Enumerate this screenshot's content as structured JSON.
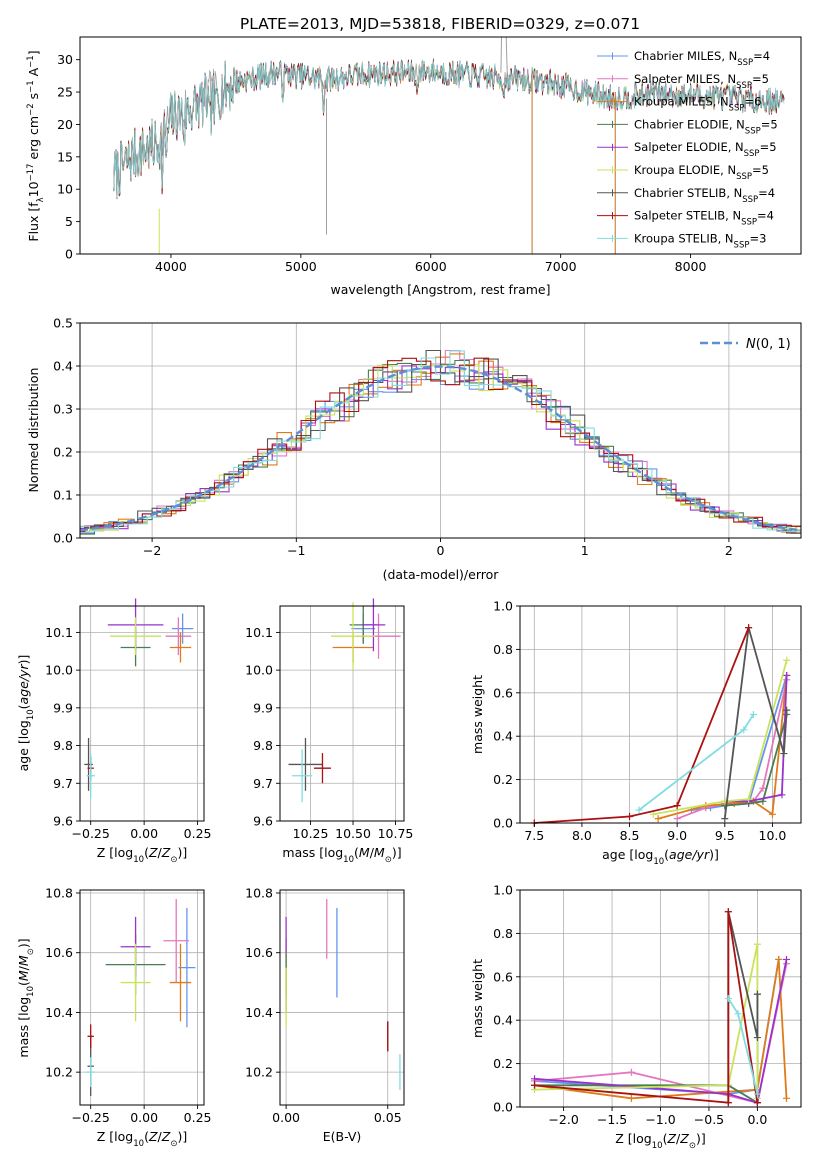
{
  "figure_title": "PLATE=2013, MJD=53818, FIBERID=0329, z=0.071",
  "colors": {
    "Chabrier MILES": "#6495ed",
    "Salpeter MILES": "#e377c2",
    "Kroupa MILES": "#e07b1a",
    "Chabrier ELODIE": "#4a7d52",
    "Salpeter ELODIE": "#9932cc",
    "Kroupa ELODIE": "#c9e35a",
    "Chabrier STELIB": "#555555",
    "Salpeter STELIB": "#aa1111",
    "Kroupa STELIB": "#80dde0"
  },
  "chart_data": [
    {
      "id": "spectrum",
      "type": "line",
      "title": "PLATE=2013, MJD=53818, FIBERID=0329, z=0.071",
      "xlabel": "wavelength [Angstrom, rest frame]",
      "ylabel": "Flux [f_λ 10^-17 erg cm^-2 s^-1 A^-1]",
      "xlim": [
        3300,
        8850
      ],
      "ylim": [
        0,
        33.5
      ],
      "xticks": [
        4000,
        5000,
        6000,
        7000,
        8000
      ],
      "yticks": [
        0,
        5,
        10,
        15,
        20,
        25,
        30
      ],
      "legend_position": "upper right",
      "continuum": {
        "x": [
          3560,
          3700,
          3900,
          4000,
          4100,
          4300,
          4500,
          4800,
          5000,
          5200,
          5500,
          5800,
          6000,
          6300,
          6500,
          6700,
          6900,
          7100,
          7400,
          7700,
          8000,
          8400,
          8700
        ],
        "y": [
          12,
          15,
          17,
          21,
          22,
          24,
          26.5,
          28,
          27.5,
          27,
          27.8,
          28,
          28.2,
          27.6,
          27.2,
          27,
          26.5,
          25.5,
          24,
          24.8,
          24.5,
          24,
          23.5
        ]
      },
      "series": [
        {
          "name": "Chabrier MILES, N_SSP=4"
        },
        {
          "name": "Salpeter MILES, N_SSP=5"
        },
        {
          "name": "Kroupa MILES, N_SSP=6"
        },
        {
          "name": "Chabrier ELODIE, N_SSP=5"
        },
        {
          "name": "Salpeter ELODIE, N_SSP=5"
        },
        {
          "name": "Kroupa ELODIE, N_SSP=5"
        },
        {
          "name": "Chabrier STELIB, N_SSP=4"
        },
        {
          "name": "Salpeter STELIB, N_SSP=4"
        },
        {
          "name": "Kroupa STELIB, N_SSP=3"
        }
      ]
    },
    {
      "id": "residuals",
      "type": "area",
      "xlabel": "(data-model)/error",
      "ylabel": "Normed distribution",
      "xlim": [
        -2.5,
        2.5
      ],
      "ylim": [
        0,
        0.5
      ],
      "xticks": [
        -2,
        -1,
        0,
        1,
        2
      ],
      "yticks": [
        0.0,
        0.1,
        0.2,
        0.3,
        0.4,
        0.5
      ],
      "grid": true,
      "legend_label": "N(0,1)",
      "legend_position": "upper right",
      "bin_width": 0.1
    },
    {
      "id": "age-Z",
      "type": "scatter",
      "xlabel": "Z [log10(Z/Z⊙)]",
      "ylabel": "age [log10(age/yr)]",
      "xlim": [
        -0.3,
        0.28
      ],
      "ylim": [
        9.6,
        10.17
      ],
      "xticks": [
        -0.25,
        0.0,
        0.25
      ],
      "yticks": [
        9.6,
        9.7,
        9.8,
        9.9,
        10.0,
        10.1
      ],
      "grid": true,
      "points": [
        {
          "model": "Chabrier MILES",
          "x": 0.18,
          "y": 10.11,
          "xerr": 0.05,
          "yerr": 0.04
        },
        {
          "model": "Salpeter MILES",
          "x": 0.16,
          "y": 10.09,
          "xerr": 0.06,
          "yerr": 0.05
        },
        {
          "model": "Kroupa MILES",
          "x": 0.17,
          "y": 10.06,
          "xerr": 0.05,
          "yerr": 0.04
        },
        {
          "model": "Chabrier ELODIE",
          "x": -0.04,
          "y": 10.06,
          "xerr": 0.07,
          "yerr": 0.05
        },
        {
          "model": "Salpeter ELODIE",
          "x": -0.04,
          "y": 10.12,
          "xerr": 0.13,
          "yerr": 0.07
        },
        {
          "model": "Kroupa ELODIE",
          "x": -0.04,
          "y": 10.09,
          "xerr": 0.12,
          "yerr": 0.05
        },
        {
          "model": "Chabrier STELIB",
          "x": -0.26,
          "y": 9.75,
          "xerr": 0.02,
          "yerr": 0.07
        },
        {
          "model": "Salpeter STELIB",
          "x": -0.25,
          "y": 9.74,
          "xerr": 0.015,
          "yerr": 0.03
        },
        {
          "model": "Kroupa STELIB",
          "x": -0.25,
          "y": 9.72,
          "xerr": 0.02,
          "yerr": 0.06
        }
      ]
    },
    {
      "id": "age-mass",
      "type": "scatter",
      "xlabel": "mass [log10(M/M⊙)]",
      "ylabel": "",
      "xlim": [
        10.07,
        10.8
      ],
      "ylim": [
        9.6,
        10.17
      ],
      "xticks": [
        10.25,
        10.5,
        10.75
      ],
      "yticks": [
        9.6,
        9.7,
        9.8,
        9.9,
        10.0,
        10.1
      ],
      "grid": true,
      "points": [
        {
          "model": "Chabrier MILES",
          "x": 10.56,
          "y": 10.11,
          "xerr": 0.07,
          "yerr": 0.04
        },
        {
          "model": "Salpeter MILES",
          "x": 10.65,
          "y": 10.09,
          "xerr": 0.13,
          "yerr": 0.06
        },
        {
          "model": "Kroupa MILES",
          "x": 10.5,
          "y": 10.06,
          "xerr": 0.12,
          "yerr": 0.04
        },
        {
          "model": "Chabrier ELODIE",
          "x": 10.56,
          "y": 10.12,
          "xerr": 0.08,
          "yerr": 0.05
        },
        {
          "model": "Salpeter ELODIE",
          "x": 10.62,
          "y": 10.12,
          "xerr": 0.07,
          "yerr": 0.07
        },
        {
          "model": "Kroupa ELODIE",
          "x": 10.5,
          "y": 10.09,
          "xerr": 0.13,
          "yerr": 0.09
        },
        {
          "model": "Chabrier STELIB",
          "x": 10.22,
          "y": 9.75,
          "xerr": 0.1,
          "yerr": 0.07
        },
        {
          "model": "Salpeter STELIB",
          "x": 10.32,
          "y": 9.74,
          "xerr": 0.05,
          "yerr": 0.04
        },
        {
          "model": "Kroupa STELIB",
          "x": 10.2,
          "y": 9.72,
          "xerr": 0.06,
          "yerr": 0.07
        }
      ]
    },
    {
      "id": "weight-age",
      "type": "line",
      "xlabel": "age [log10(age/yr)]",
      "ylabel": "mass weight",
      "xlim": [
        7.35,
        10.3
      ],
      "ylim": [
        0,
        1
      ],
      "xticks": [
        7.5,
        8.0,
        8.5,
        9.0,
        9.5,
        10.0
      ],
      "yticks": [
        0.0,
        0.2,
        0.4,
        0.6,
        0.8,
        1.0
      ],
      "grid": true,
      "series": [
        {
          "model": "Chabrier MILES",
          "x": [
            9.15,
            9.35,
            9.5,
            9.75,
            10.15
          ],
          "y": [
            0.06,
            0.07,
            0.08,
            0.09,
            0.68
          ]
        },
        {
          "model": "Salpeter MILES",
          "x": [
            9.0,
            9.3,
            9.5,
            9.8,
            9.9,
            10.15
          ],
          "y": [
            0.02,
            0.07,
            0.09,
            0.1,
            0.16,
            0.66
          ]
        },
        {
          "model": "Kroupa MILES",
          "x": [
            8.8,
            9.3,
            9.6,
            9.8,
            10.0,
            10.15
          ],
          "y": [
            0.02,
            0.08,
            0.09,
            0.1,
            0.04,
            0.68
          ]
        },
        {
          "model": "Chabrier ELODIE",
          "x": [
            9.5,
            9.75,
            9.9,
            10.15
          ],
          "y": [
            0.08,
            0.09,
            0.1,
            0.5
          ]
        },
        {
          "model": "Salpeter ELODIE",
          "x": [
            9.5,
            9.75,
            10.1,
            10.15
          ],
          "y": [
            0.1,
            0.1,
            0.13,
            0.68
          ]
        },
        {
          "model": "Kroupa ELODIE",
          "x": [
            8.75,
            9.5,
            9.75,
            10.15
          ],
          "y": [
            0.04,
            0.1,
            0.11,
            0.75
          ]
        },
        {
          "model": "Chabrier STELIB",
          "x": [
            9.5,
            9.75,
            10.12,
            10.15
          ],
          "y": [
            0.02,
            0.9,
            0.32,
            0.52
          ]
        },
        {
          "model": "Salpeter STELIB",
          "x": [
            7.5,
            8.5,
            9.0,
            9.75
          ],
          "y": [
            0.0,
            0.03,
            0.08,
            0.9
          ]
        },
        {
          "model": "Kroupa STELIB",
          "x": [
            8.6,
            9.7,
            9.8
          ],
          "y": [
            0.06,
            0.43,
            0.5
          ]
        }
      ]
    },
    {
      "id": "mass-Z",
      "type": "scatter",
      "xlabel": "Z [log10(Z/Z⊙)]",
      "ylabel": "mass [log10(M/M⊙)]",
      "xlim": [
        -0.3,
        0.28
      ],
      "ylim": [
        10.09,
        10.81
      ],
      "xticks": [
        -0.25,
        0.0,
        0.25
      ],
      "yticks": [
        10.2,
        10.4,
        10.6,
        10.8
      ],
      "grid": true,
      "points": [
        {
          "model": "Chabrier MILES",
          "x": 0.2,
          "y": 10.55,
          "xerr": 0.04,
          "yerr": 0.2
        },
        {
          "model": "Salpeter MILES",
          "x": 0.15,
          "y": 10.64,
          "xerr": 0.06,
          "yerr": 0.14
        },
        {
          "model": "Kroupa MILES",
          "x": 0.17,
          "y": 10.5,
          "xerr": 0.05,
          "yerr": 0.13
        },
        {
          "model": "Chabrier ELODIE",
          "x": -0.04,
          "y": 10.56,
          "xerr": 0.14,
          "yerr": 0.1
        },
        {
          "model": "Salpeter ELODIE",
          "x": -0.04,
          "y": 10.62,
          "xerr": 0.07,
          "yerr": 0.1
        },
        {
          "model": "Kroupa ELODIE",
          "x": -0.04,
          "y": 10.5,
          "xerr": 0.07,
          "yerr": 0.13
        },
        {
          "model": "Chabrier STELIB",
          "x": -0.25,
          "y": 10.22,
          "xerr": 0.015,
          "yerr": 0.1
        },
        {
          "model": "Salpeter STELIB",
          "x": -0.25,
          "y": 10.32,
          "xerr": 0.015,
          "yerr": 0.04
        },
        {
          "model": "Kroupa STELIB",
          "x": -0.25,
          "y": 10.2,
          "xerr": 0.02,
          "yerr": 0.05
        }
      ]
    },
    {
      "id": "mass-ebv",
      "type": "scatter",
      "xlabel": "E(B-V)",
      "ylabel": "",
      "xlim": [
        -0.003,
        0.058
      ],
      "ylim": [
        10.09,
        10.81
      ],
      "xticks": [
        0.0,
        0.05
      ],
      "yticks": [
        10.2,
        10.4,
        10.6,
        10.8
      ],
      "grid": true,
      "points": [
        {
          "model": "Chabrier MILES",
          "x": 0.025,
          "y": 10.6,
          "yerr": 0.15
        },
        {
          "model": "Salpeter MILES",
          "x": 0.02,
          "y": 10.68,
          "yerr": 0.1
        },
        {
          "model": "Kroupa MILES",
          "x": 0.0,
          "y": 10.55,
          "yerr": 0.1
        },
        {
          "model": "Chabrier ELODIE",
          "x": 0.0,
          "y": 10.5,
          "yerr": 0.1
        },
        {
          "model": "Salpeter ELODIE",
          "x": 0.0,
          "y": 10.66,
          "yerr": 0.06
        },
        {
          "model": "Kroupa ELODIE",
          "x": 0.0,
          "y": 10.45,
          "yerr": 0.1
        },
        {
          "model": "Chabrier STELIB",
          "x": 0.05,
          "y": 10.32,
          "yerr": 0.05
        },
        {
          "model": "Salpeter STELIB",
          "x": 0.05,
          "y": 10.32,
          "yerr": 0.05
        },
        {
          "model": "Kroupa STELIB",
          "x": 0.056,
          "y": 10.2,
          "yerr": 0.06
        }
      ]
    },
    {
      "id": "weight-Z",
      "type": "line",
      "xlabel": "Z [log10(Z/Z⊙)]",
      "ylabel": "mass weight",
      "xlim": [
        -2.45,
        0.45
      ],
      "ylim": [
        0,
        1
      ],
      "xticks": [
        -2.0,
        -1.5,
        -1.0,
        -0.5,
        0.0
      ],
      "yticks": [
        0.0,
        0.2,
        0.4,
        0.6,
        0.8,
        1.0
      ],
      "grid": true,
      "series": [
        {
          "model": "Chabrier MILES",
          "x": [
            -2.3,
            -0.3,
            0.0,
            0.22
          ],
          "y": [
            0.12,
            0.06,
            0.08,
            0.68
          ]
        },
        {
          "model": "Salpeter MILES",
          "x": [
            -2.3,
            -1.3,
            0.0,
            0.3
          ],
          "y": [
            0.12,
            0.16,
            0.02,
            0.66
          ]
        },
        {
          "model": "Kroupa MILES",
          "x": [
            -2.3,
            -1.3,
            0.0,
            0.22,
            0.3
          ],
          "y": [
            0.1,
            0.04,
            0.08,
            0.68,
            0.04
          ]
        },
        {
          "model": "Chabrier ELODIE",
          "x": [
            -2.3,
            -0.3,
            0.0,
            0.0
          ],
          "y": [
            0.1,
            0.1,
            0.02,
            0.52
          ]
        },
        {
          "model": "Salpeter ELODIE",
          "x": [
            -2.3,
            -0.3,
            0.0,
            0.3
          ],
          "y": [
            0.13,
            0.06,
            0.02,
            0.68
          ]
        },
        {
          "model": "Kroupa ELODIE",
          "x": [
            -2.3,
            -0.3,
            0.0,
            0.0
          ],
          "y": [
            0.08,
            0.1,
            0.75,
            0.04
          ]
        },
        {
          "model": "Chabrier STELIB",
          "x": [
            -0.3,
            -0.3,
            0.0,
            0.0
          ],
          "y": [
            0.02,
            0.9,
            0.32,
            0.52
          ]
        },
        {
          "model": "Salpeter STELIB",
          "x": [
            -2.3,
            -0.3,
            -0.3,
            0.0
          ],
          "y": [
            0.1,
            0.02,
            0.9,
            0.02
          ]
        },
        {
          "model": "Kroupa STELIB",
          "x": [
            -0.3,
            -0.2,
            0.0
          ],
          "y": [
            0.5,
            0.43,
            0.06
          ]
        }
      ]
    }
  ]
}
